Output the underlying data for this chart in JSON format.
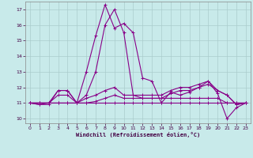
{
  "xlabel": "Windchill (Refroidissement éolien,°C)",
  "background_color": "#c8eaea",
  "grid_color": "#aacccc",
  "line_color": "#880088",
  "x": [
    0,
    1,
    2,
    3,
    4,
    5,
    6,
    7,
    8,
    9,
    10,
    11,
    12,
    13,
    14,
    15,
    16,
    17,
    18,
    19,
    20,
    21,
    22,
    23
  ],
  "series": [
    [
      11,
      11,
      11,
      11.8,
      11.8,
      11,
      13,
      15.3,
      17.3,
      15.8,
      16.1,
      15.5,
      12.6,
      12.4,
      11,
      11.7,
      11.5,
      11.7,
      12.0,
      12.4,
      11.6,
      10.0,
      10.7,
      11
    ],
    [
      11,
      10.9,
      10.9,
      11.8,
      11.8,
      11,
      11.5,
      13.0,
      16.0,
      17.0,
      15.5,
      11.5,
      11.3,
      11.3,
      11.3,
      11.6,
      11.8,
      11.8,
      12.0,
      12.2,
      11.8,
      11.5,
      10.9,
      11
    ],
    [
      11,
      10.9,
      11,
      11.5,
      11.5,
      11,
      11.3,
      11.5,
      11.8,
      12.0,
      11.5,
      11.5,
      11.5,
      11.5,
      11.5,
      11.8,
      12.0,
      12.0,
      12.2,
      12.4,
      11.8,
      11.5,
      10.9,
      11
    ],
    [
      11,
      11,
      11,
      11,
      11,
      11,
      11,
      11,
      11,
      11,
      11,
      11,
      11,
      11,
      11,
      11,
      11,
      11,
      11,
      11,
      11,
      11,
      11,
      11
    ],
    [
      11,
      11,
      11,
      11,
      11,
      11,
      11,
      11.1,
      11.3,
      11.5,
      11.3,
      11.3,
      11.3,
      11.3,
      11.3,
      11.3,
      11.3,
      11.3,
      11.3,
      11.3,
      11.3,
      11,
      11,
      11
    ]
  ],
  "ylim": [
    9.7,
    17.5
  ],
  "yticks": [
    10,
    11,
    12,
    13,
    14,
    15,
    16,
    17
  ],
  "xticks": [
    0,
    1,
    2,
    3,
    4,
    5,
    6,
    7,
    8,
    9,
    10,
    11,
    12,
    13,
    14,
    15,
    16,
    17,
    18,
    19,
    20,
    21,
    22,
    23
  ],
  "marker": "+",
  "markersize": 3.5,
  "linewidth": 0.8
}
